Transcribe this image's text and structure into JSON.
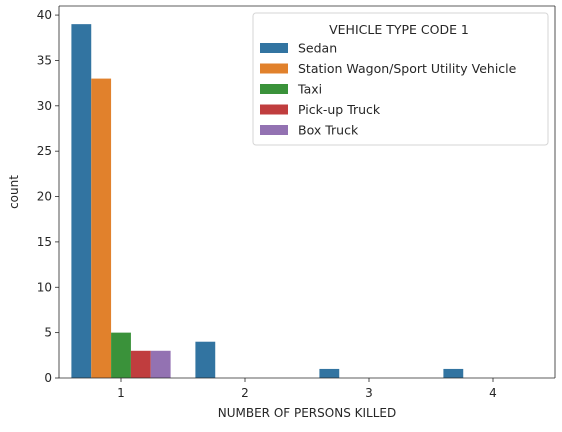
{
  "chart_data": {
    "type": "bar",
    "xlabel": "NUMBER OF PERSONS KILLED",
    "ylabel": "count",
    "ylim": [
      0,
      41
    ],
    "yticks": [
      "0",
      "5",
      "10",
      "15",
      "20",
      "25",
      "30",
      "35",
      "40"
    ],
    "categories": [
      "1",
      "2",
      "3",
      "4"
    ],
    "series": [
      {
        "name": "Sedan",
        "color": "#3274a1",
        "values": [
          39,
          4,
          1,
          1
        ]
      },
      {
        "name": "Station Wagon/Sport Utility Vehicle",
        "color": "#e1812c",
        "values": [
          33,
          0,
          0,
          0
        ]
      },
      {
        "name": "Taxi",
        "color": "#3a923a",
        "values": [
          5,
          0,
          0,
          0
        ]
      },
      {
        "name": "Pick-up Truck",
        "color": "#c03d3e",
        "values": [
          3,
          0,
          0,
          0
        ]
      },
      {
        "name": "Box Truck",
        "color": "#9372b2",
        "values": [
          3,
          0,
          0,
          0
        ]
      }
    ],
    "legend": {
      "title": "VEHICLE TYPE CODE 1",
      "placement": "top-right"
    },
    "grid": false
  }
}
